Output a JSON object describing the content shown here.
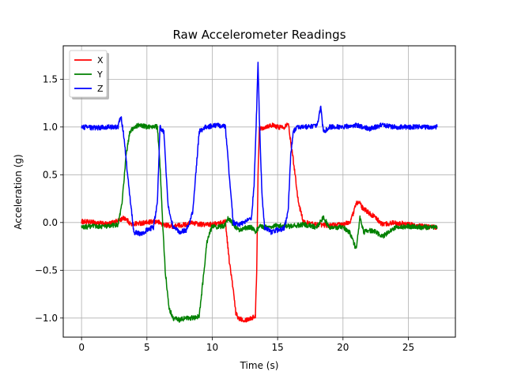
{
  "chart_data": {
    "type": "line",
    "title": "Raw Accelerometer Readings",
    "xlabel": "Time (s)",
    "ylabel": "Acceleration (g)",
    "xlim": [
      -1.4,
      28.6
    ],
    "ylim": [
      -1.2,
      1.85
    ],
    "xticks": [
      0,
      5,
      10,
      15,
      20,
      25
    ],
    "yticks": [
      -1.0,
      -0.5,
      0.0,
      0.5,
      1.0,
      1.5
    ],
    "xtick_labels": [
      "0",
      "5",
      "10",
      "15",
      "20",
      "25"
    ],
    "ytick_labels": [
      "−1.0",
      "−0.5",
      "0.0",
      "0.5",
      "1.0",
      "1.5"
    ],
    "grid": true,
    "legend_position": "top-left",
    "series": [
      {
        "name": "X",
        "color": "#ff0000",
        "x": [
          0,
          1,
          2,
          2.8,
          3.3,
          3.8,
          4.2,
          5,
          5.8,
          6.2,
          6.6,
          7,
          7.5,
          8,
          8.5,
          9,
          10,
          10.8,
          11,
          11.3,
          11.6,
          11.8,
          12,
          12.5,
          13,
          13.3,
          13.4,
          13.5,
          13.6,
          13.7,
          14,
          14.5,
          15,
          15.5,
          15.8,
          16,
          16.3,
          16.6,
          17,
          18,
          19,
          20,
          20.5,
          20.8,
          21,
          21.2,
          21.5,
          22,
          22.5,
          23,
          24,
          25,
          26,
          27.2
        ],
        "y": [
          0.01,
          0.0,
          -0.02,
          0.02,
          0.05,
          -0.02,
          -0.01,
          0.0,
          0.01,
          -0.02,
          -0.03,
          -0.04,
          -0.03,
          -0.02,
          0.0,
          -0.02,
          -0.02,
          0.0,
          0.02,
          -0.4,
          -0.7,
          -0.95,
          -1.0,
          -1.02,
          -1.0,
          -0.98,
          -0.5,
          0.5,
          1.0,
          0.98,
          1.0,
          1.02,
          1.0,
          1.0,
          1.05,
          0.85,
          0.55,
          0.2,
          0.0,
          -0.02,
          -0.03,
          -0.02,
          0.0,
          0.1,
          0.2,
          0.22,
          0.15,
          0.1,
          0.05,
          -0.02,
          0.0,
          -0.02,
          -0.04,
          -0.05
        ]
      },
      {
        "name": "Y",
        "color": "#008000",
        "x": [
          0,
          1,
          2,
          2.8,
          3.1,
          3.4,
          3.7,
          4,
          4.5,
          5,
          5.5,
          5.8,
          6.0,
          6.2,
          6.4,
          6.7,
          7,
          7.5,
          8,
          8.5,
          9,
          9.3,
          9.6,
          10,
          10.5,
          11,
          11.2,
          11.5,
          12,
          12.5,
          13,
          13.3,
          13.6,
          14,
          15,
          16,
          17,
          18,
          18.5,
          19,
          20,
          20.5,
          20.8,
          21,
          21.3,
          21.6,
          22,
          22.5,
          23,
          24,
          25,
          26,
          27.2
        ],
        "y": [
          -0.05,
          -0.04,
          -0.04,
          -0.02,
          0.2,
          0.7,
          0.95,
          1.0,
          1.02,
          1.0,
          1.01,
          1.0,
          0.6,
          0.0,
          -0.5,
          -0.9,
          -1.0,
          -1.02,
          -1.0,
          -1.0,
          -0.98,
          -0.6,
          -0.2,
          -0.03,
          -0.05,
          -0.03,
          0.05,
          0.0,
          -0.08,
          -0.06,
          -0.05,
          -0.1,
          -0.04,
          -0.05,
          -0.03,
          -0.04,
          -0.02,
          -0.05,
          0.05,
          -0.05,
          -0.05,
          -0.1,
          -0.2,
          -0.28,
          0.05,
          -0.1,
          -0.08,
          -0.1,
          -0.15,
          -0.05,
          -0.04,
          -0.05,
          -0.05
        ]
      },
      {
        "name": "Z",
        "color": "#0000ff",
        "x": [
          0,
          1,
          2,
          2.8,
          3.0,
          3.2,
          3.6,
          4,
          4.5,
          5,
          5.5,
          5.8,
          6.0,
          6.3,
          6.6,
          7,
          7.5,
          8,
          8.5,
          9,
          9.5,
          10,
          10.5,
          11,
          11.3,
          11.6,
          12,
          12.5,
          13,
          13.2,
          13.4,
          13.5,
          13.6,
          13.8,
          14,
          14.5,
          15,
          15.5,
          15.8,
          16.0,
          16.2,
          16.5,
          17,
          18,
          18.3,
          18.5,
          19,
          20,
          21,
          22,
          23,
          24,
          25,
          26,
          27.2
        ],
        "y": [
          1.0,
          0.99,
          1.0,
          1.0,
          1.12,
          0.95,
          0.4,
          -0.1,
          -0.12,
          -0.08,
          -0.05,
          0.2,
          1.0,
          0.95,
          0.2,
          -0.05,
          -0.1,
          -0.08,
          0.1,
          0.95,
          1.0,
          1.01,
          1.02,
          1.0,
          0.5,
          0.0,
          -0.02,
          0.0,
          0.05,
          0.4,
          1.2,
          1.7,
          1.1,
          0.3,
          -0.05,
          -0.1,
          -0.08,
          -0.06,
          0.1,
          0.7,
          0.95,
          1.0,
          1.0,
          1.01,
          1.2,
          0.95,
          1.0,
          1.0,
          1.02,
          0.98,
          1.02,
          1.0,
          1.0,
          1.0,
          1.0
        ]
      }
    ]
  }
}
